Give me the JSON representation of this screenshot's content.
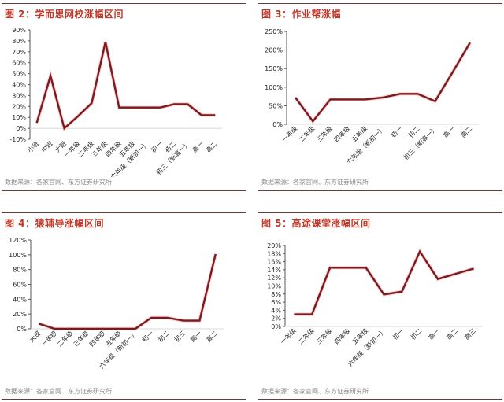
{
  "chart_data": [
    {
      "type": "line",
      "title": "图 2：学而思网校涨幅区间",
      "source": "数据来源：各家官网、东方证券研究所",
      "xlabel": "",
      "ylabel": "",
      "categories": [
        "小班",
        "中班",
        "大班",
        "一年级",
        "二年级",
        "三年级",
        "四年级",
        "五年级",
        "六年级（新初一）",
        "初一",
        "初二",
        "初三（新高一）",
        "高一",
        "高二"
      ],
      "values": [
        5,
        48,
        0,
        11,
        23,
        79,
        19,
        19,
        19,
        19,
        22,
        22,
        12,
        12
      ],
      "unit": "%",
      "yticks": [
        "-10%",
        "0%",
        "10%",
        "20%",
        "30%",
        "40%",
        "50%",
        "60%",
        "70%",
        "80%",
        "90%"
      ],
      "ylim": [
        -10,
        90
      ],
      "line_color": "#7a1a1f",
      "grid": false
    },
    {
      "type": "line",
      "title": "图 3：作业帮涨幅",
      "source": "数据来源：各家官网、东方证券研究所",
      "xlabel": "",
      "ylabel": "",
      "categories": [
        "一年级",
        "二年级",
        "三年级",
        "四年级",
        "五年级",
        "六年级（新初一）",
        "初一",
        "初二",
        "初三（新高一）",
        "高一",
        "高二"
      ],
      "values": [
        72,
        8,
        67,
        67,
        67,
        72,
        82,
        82,
        62,
        140,
        220
      ],
      "unit": "%",
      "yticks": [
        "0%",
        "50%",
        "100%",
        "150%",
        "200%",
        "250%"
      ],
      "ylim": [
        0,
        250
      ],
      "line_color": "#7a1a1f",
      "grid": false
    },
    {
      "type": "line",
      "title": "图 4：猿辅导涨幅区间",
      "source": "数据来源：各家官网、东方证券研究所",
      "xlabel": "",
      "ylabel": "",
      "categories": [
        "大班",
        "一年级",
        "二年级",
        "三年级",
        "四年级",
        "五年级",
        "六年级（新初一）",
        "初一",
        "初二",
        "初三",
        "高一",
        "高二"
      ],
      "values": [
        7,
        0,
        0,
        0,
        0,
        0,
        0,
        15,
        15,
        11,
        11,
        101
      ],
      "unit": "%",
      "yticks": [
        "0%",
        "20%",
        "40%",
        "60%",
        "80%",
        "100%",
        "120%"
      ],
      "ylim": [
        0,
        120
      ],
      "line_color": "#7a1a1f",
      "grid": false
    },
    {
      "type": "line",
      "title": "图 5：高途课堂涨幅区间",
      "source": "数据来源：各家官网、东方证券研究所",
      "xlabel": "",
      "ylabel": "",
      "categories": [
        "一年级",
        "二年级",
        "三年级",
        "四年级",
        "五年级",
        "六年级（新初一）",
        "初一",
        "初二",
        "高一",
        "高二",
        "高三"
      ],
      "values": [
        3,
        3,
        14.5,
        14.5,
        14.5,
        7.9,
        8.6,
        18.5,
        11.7,
        13,
        14.3
      ],
      "unit": "%",
      "yticks": [
        "0%",
        "2%",
        "4%",
        "6%",
        "8%",
        "10%",
        "12%",
        "14%",
        "16%",
        "18%",
        "20%"
      ],
      "ylim": [
        0,
        20
      ],
      "line_color": "#7a1a1f",
      "grid": false
    }
  ],
  "panels": [
    {
      "title": "图 2：学而思网校涨幅区间",
      "source": "数据来源：各家官网、东方证券研究所"
    },
    {
      "title": "图 3：作业帮涨幅",
      "source": "数据来源：各家官网、东方证券研究所"
    },
    {
      "title": "图 4：猿辅导涨幅区间",
      "source": "数据来源：各家官网、东方证券研究所"
    },
    {
      "title": "图 5：高途课堂涨幅区间",
      "source": "数据来源：各家官网、东方证券研究所"
    }
  ],
  "colors": {
    "title": "#c0392b",
    "line": "#7a1a1f",
    "rule": "#6b3a3a",
    "source_text": "#8a8a8a"
  }
}
